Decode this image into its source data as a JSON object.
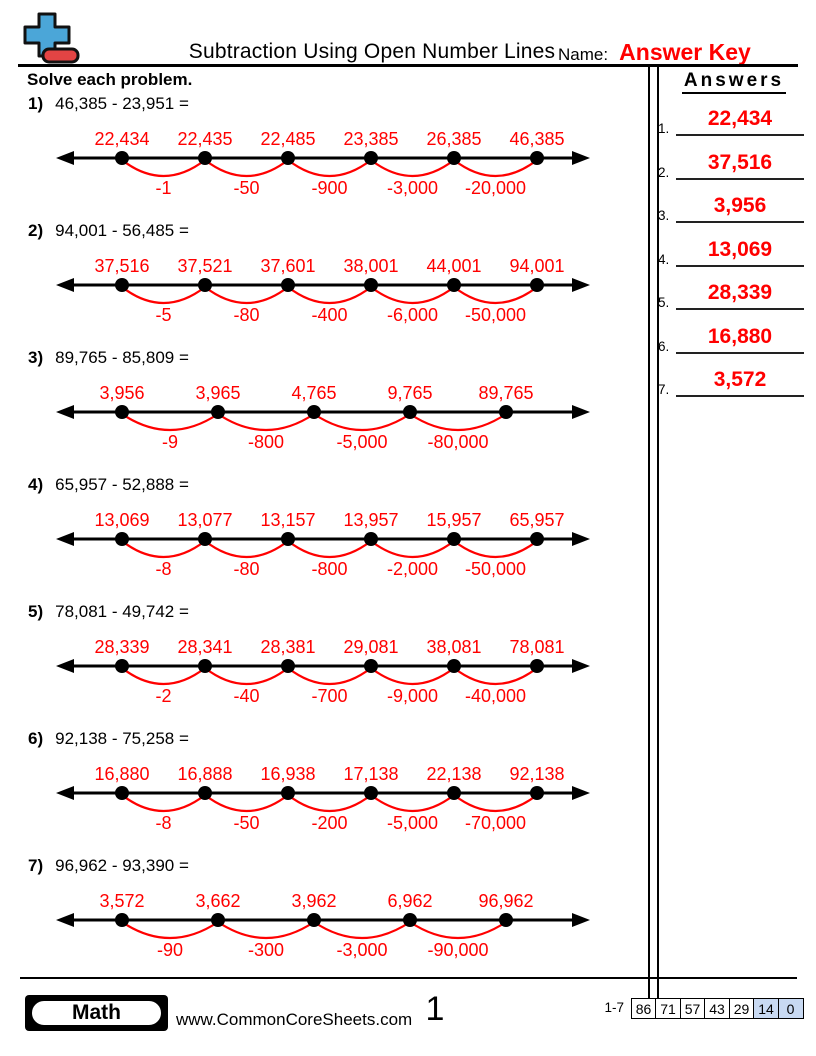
{
  "header": {
    "title": "Subtraction Using Open Number Lines",
    "name_label": "Name:",
    "name_value": "Answer Key"
  },
  "instructions": "Solve each problem.",
  "colors": {
    "accent_red": "#ff0000",
    "logo_plus_blue": "#4ba6d8",
    "logo_minus_red": "#e34444",
    "score_highlight_blue": "#c8d9f2"
  },
  "problems": [
    {
      "num": "1)",
      "equation": "46,385 - 23,951 =",
      "points": [
        "22,434",
        "22,435",
        "22,485",
        "23,385",
        "26,385",
        "46,385"
      ],
      "jumps": [
        "-1",
        "-50",
        "-900",
        "-3,000",
        "-20,000"
      ]
    },
    {
      "num": "2)",
      "equation": "94,001 - 56,485 =",
      "points": [
        "37,516",
        "37,521",
        "37,601",
        "38,001",
        "44,001",
        "94,001"
      ],
      "jumps": [
        "-5",
        "-80",
        "-400",
        "-6,000",
        "-50,000"
      ]
    },
    {
      "num": "3)",
      "equation": "89,765 - 85,809 =",
      "points": [
        "3,956",
        "3,965",
        "4,765",
        "9,765",
        "89,765"
      ],
      "jumps": [
        "-9",
        "-800",
        "-5,000",
        "-80,000"
      ]
    },
    {
      "num": "4)",
      "equation": "65,957 - 52,888 =",
      "points": [
        "13,069",
        "13,077",
        "13,157",
        "13,957",
        "15,957",
        "65,957"
      ],
      "jumps": [
        "-8",
        "-80",
        "-800",
        "-2,000",
        "-50,000"
      ]
    },
    {
      "num": "5)",
      "equation": "78,081 - 49,742 =",
      "points": [
        "28,339",
        "28,341",
        "28,381",
        "29,081",
        "38,081",
        "78,081"
      ],
      "jumps": [
        "-2",
        "-40",
        "-700",
        "-9,000",
        "-40,000"
      ]
    },
    {
      "num": "6)",
      "equation": "92,138 - 75,258 =",
      "points": [
        "16,880",
        "16,888",
        "16,938",
        "17,138",
        "22,138",
        "92,138"
      ],
      "jumps": [
        "-8",
        "-50",
        "-200",
        "-5,000",
        "-70,000"
      ]
    },
    {
      "num": "7)",
      "equation": "96,962 - 93,390 =",
      "points": [
        "3,572",
        "3,662",
        "3,962",
        "6,962",
        "96,962"
      ],
      "jumps": [
        "-90",
        "-300",
        "-3,000",
        "-90,000"
      ]
    }
  ],
  "answers": {
    "title": "Answers",
    "items": [
      {
        "num": "1.",
        "value": "22,434"
      },
      {
        "num": "2.",
        "value": "37,516"
      },
      {
        "num": "3.",
        "value": "3,956"
      },
      {
        "num": "4.",
        "value": "13,069"
      },
      {
        "num": "5.",
        "value": "28,339"
      },
      {
        "num": "6.",
        "value": "16,880"
      },
      {
        "num": "7.",
        "value": "3,572"
      }
    ]
  },
  "footer": {
    "subject": "Math",
    "website": "www.CommonCoreSheets.com",
    "page": "1",
    "score_label": "1-7",
    "scores": [
      "86",
      "71",
      "57",
      "43",
      "29",
      "14",
      "0"
    ],
    "highlighted_scores": [
      "14",
      "0"
    ]
  }
}
